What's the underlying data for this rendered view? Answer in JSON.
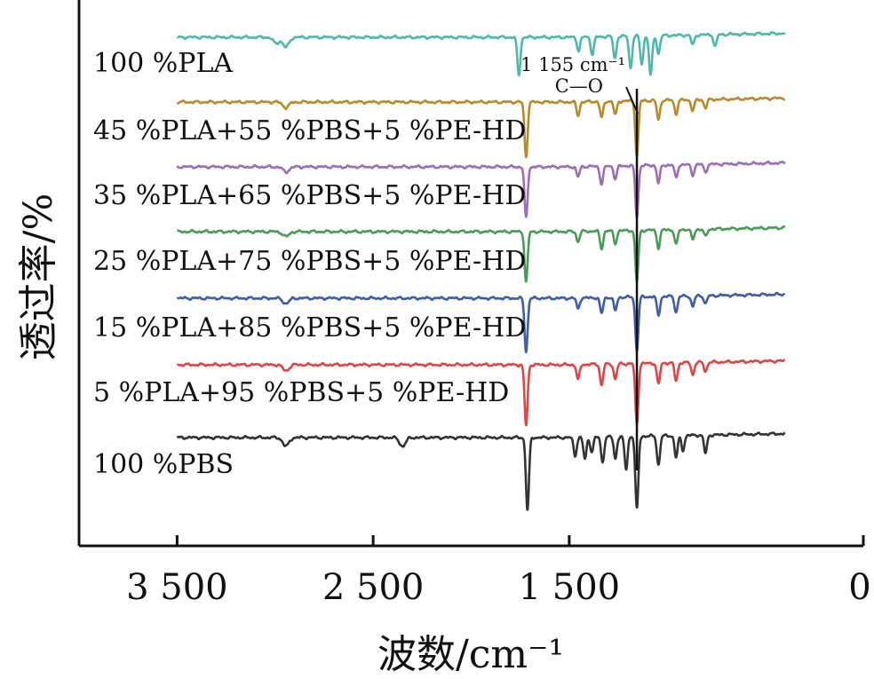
{
  "chart_data": {
    "type": "line",
    "xlabel": "波数/cm⁻¹",
    "ylabel": "透过率/%",
    "x_reversed": true,
    "xlim": [
      4000,
      0
    ],
    "xticks": [
      {
        "value": 3500,
        "label": "3 500"
      },
      {
        "value": 2500,
        "label": "2 500"
      },
      {
        "value": 1500,
        "label": "1 500"
      },
      {
        "value": 0,
        "label": "0"
      }
    ],
    "y_tick_labels": false,
    "grid": false,
    "x_range": [
      3500,
      400
    ],
    "annotation": {
      "x": 1155,
      "label": "1 155 cm⁻¹",
      "sublabel": "C—O"
    },
    "series": [
      {
        "name": "100 %PLA",
        "color": "#4fb8ac",
        "peaks": [
          [
            2995,
            0.15
          ],
          [
            2945,
            0.25
          ],
          [
            1757,
            0.95
          ],
          [
            1452,
            0.35
          ],
          [
            1382,
            0.45
          ],
          [
            1267,
            0.55
          ],
          [
            1187,
            0.8
          ],
          [
            1130,
            0.7
          ],
          [
            1085,
            1.0
          ],
          [
            1045,
            0.45
          ],
          [
            870,
            0.25
          ],
          [
            756,
            0.3
          ]
        ]
      },
      {
        "name": "45 %PLA+55 %PBS+5 %PE-HD",
        "color": "#b58b2c",
        "peaks": [
          [
            2945,
            0.1
          ],
          [
            1720,
            1.0
          ],
          [
            1455,
            0.25
          ],
          [
            1335,
            0.3
          ],
          [
            1265,
            0.25
          ],
          [
            1155,
            1.0
          ],
          [
            1045,
            0.35
          ],
          [
            955,
            0.25
          ],
          [
            870,
            0.2
          ],
          [
            805,
            0.15
          ]
        ]
      },
      {
        "name": "35 %PLA+65 %PBS+5 %PE-HD",
        "color": "#9a6fb5",
        "peaks": [
          [
            2945,
            0.1
          ],
          [
            1720,
            1.0
          ],
          [
            1455,
            0.2
          ],
          [
            1335,
            0.35
          ],
          [
            1265,
            0.25
          ],
          [
            1155,
            1.0
          ],
          [
            1045,
            0.35
          ],
          [
            955,
            0.25
          ],
          [
            870,
            0.2
          ],
          [
            805,
            0.15
          ]
        ]
      },
      {
        "name": "25 %PLA+75 %PBS+5 %PE-HD",
        "color": "#4a9b57",
        "peaks": [
          [
            2945,
            0.1
          ],
          [
            1720,
            1.0
          ],
          [
            1455,
            0.2
          ],
          [
            1335,
            0.35
          ],
          [
            1265,
            0.25
          ],
          [
            1155,
            1.0
          ],
          [
            1045,
            0.35
          ],
          [
            955,
            0.3
          ],
          [
            870,
            0.2
          ],
          [
            805,
            0.15
          ]
        ]
      },
      {
        "name": "15 %PLA+85 %PBS+5 %PE-HD",
        "color": "#3d5ea6",
        "peaks": [
          [
            2945,
            0.1
          ],
          [
            1720,
            1.0
          ],
          [
            1455,
            0.2
          ],
          [
            1335,
            0.3
          ],
          [
            1265,
            0.25
          ],
          [
            1155,
            1.0
          ],
          [
            1045,
            0.35
          ],
          [
            955,
            0.3
          ],
          [
            870,
            0.2
          ],
          [
            805,
            0.15
          ]
        ]
      },
      {
        "name": "5 %PLA+95 %PBS+5 %PE-HD",
        "color": "#e04545",
        "peaks": [
          [
            2945,
            0.1
          ],
          [
            1720,
            1.0
          ],
          [
            1455,
            0.25
          ],
          [
            1335,
            0.35
          ],
          [
            1265,
            0.25
          ],
          [
            1155,
            1.0
          ],
          [
            1045,
            0.35
          ],
          [
            955,
            0.3
          ],
          [
            870,
            0.2
          ],
          [
            805,
            0.15
          ]
        ]
      },
      {
        "name": "100 %PBS",
        "color": "#333333",
        "peaks": [
          [
            2945,
            0.12
          ],
          [
            2350,
            0.12
          ],
          [
            1713,
            1.0
          ],
          [
            1470,
            0.25
          ],
          [
            1420,
            0.3
          ],
          [
            1385,
            0.2
          ],
          [
            1330,
            0.35
          ],
          [
            1265,
            0.3
          ],
          [
            1210,
            0.45
          ],
          [
            1155,
            1.0
          ],
          [
            1045,
            0.4
          ],
          [
            955,
            0.3
          ],
          [
            920,
            0.2
          ],
          [
            805,
            0.25
          ]
        ]
      }
    ]
  }
}
